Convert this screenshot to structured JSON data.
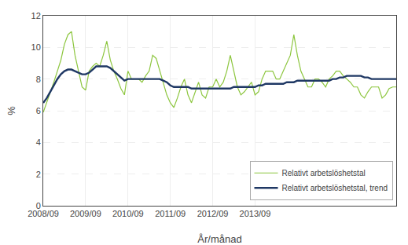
{
  "chart_data": {
    "type": "line",
    "xlabel": "År/månad",
    "ylabel": "%",
    "categories": [
      "2008/09",
      null,
      null,
      null,
      null,
      null,
      null,
      null,
      null,
      null,
      null,
      null,
      "2009/09",
      null,
      null,
      null,
      null,
      null,
      null,
      null,
      null,
      null,
      null,
      null,
      "2010/09",
      null,
      null,
      null,
      null,
      null,
      null,
      null,
      null,
      null,
      null,
      null,
      "2011/09",
      null,
      null,
      null,
      null,
      null,
      null,
      null,
      null,
      null,
      null,
      null,
      "2012/09",
      null,
      null,
      null,
      null,
      null,
      null,
      null,
      null,
      null,
      null,
      null,
      "2013/09",
      null,
      null,
      null,
      null,
      null,
      null,
      null,
      null,
      null,
      null,
      null,
      null,
      null,
      null,
      null,
      null,
      null,
      null,
      null,
      null,
      null,
      null,
      null,
      null,
      null,
      null,
      null,
      null,
      null,
      null,
      null,
      null,
      null,
      null,
      null,
      null,
      null,
      null,
      null,
      null
    ],
    "series": [
      {
        "name": "Relativt arbetslöshetstal",
        "color": "#8dc63f",
        "values": [
          5.9,
          6.5,
          7.2,
          7.8,
          8.5,
          9.2,
          10.2,
          10.8,
          11.0,
          9.5,
          8.5,
          7.5,
          7.3,
          8.5,
          8.8,
          9.0,
          8.8,
          9.5,
          10.4,
          9.2,
          8.5,
          8.0,
          7.4,
          7.0,
          8.5,
          8.0,
          8.0,
          8.0,
          7.8,
          8.2,
          8.5,
          9.5,
          9.3,
          8.5,
          7.8,
          7.0,
          6.5,
          6.2,
          6.8,
          7.5,
          8.0,
          7.0,
          6.5,
          7.2,
          7.8,
          7.0,
          6.8,
          7.5,
          7.5,
          8.0,
          7.5,
          7.8,
          8.5,
          9.5,
          8.5,
          7.5,
          7.0,
          7.2,
          7.5,
          7.8,
          7.0,
          7.2,
          8.0,
          8.5,
          8.5,
          8.5,
          8.0,
          8.0,
          8.5,
          9.0,
          9.5,
          10.8,
          9.5,
          8.5,
          8.0,
          7.5,
          7.5,
          8.0,
          8.0,
          7.8,
          7.5,
          8.0,
          8.2,
          8.5,
          8.5,
          8.2,
          8.0,
          7.8,
          7.5,
          7.5,
          7.0,
          6.8,
          7.2,
          7.5,
          7.5,
          7.5,
          6.8,
          7.0,
          7.4,
          7.5,
          7.5
        ]
      },
      {
        "name": "Relativt arbetslöshetstal, trend",
        "color": "#1f3864",
        "values": [
          6.5,
          6.8,
          7.2,
          7.6,
          8.0,
          8.3,
          8.5,
          8.6,
          8.6,
          8.5,
          8.4,
          8.3,
          8.3,
          8.4,
          8.6,
          8.8,
          8.8,
          8.8,
          8.8,
          8.7,
          8.5,
          8.3,
          8.1,
          7.9,
          8.0,
          8.0,
          8.0,
          8.0,
          8.0,
          8.0,
          8.0,
          8.0,
          8.0,
          8.0,
          7.9,
          7.8,
          7.6,
          7.5,
          7.5,
          7.5,
          7.5,
          7.5,
          7.4,
          7.4,
          7.4,
          7.4,
          7.4,
          7.4,
          7.4,
          7.4,
          7.4,
          7.4,
          7.4,
          7.4,
          7.5,
          7.5,
          7.5,
          7.5,
          7.5,
          7.5,
          7.5,
          7.6,
          7.6,
          7.7,
          7.7,
          7.7,
          7.7,
          7.7,
          7.7,
          7.8,
          7.8,
          7.8,
          7.9,
          7.9,
          7.9,
          7.9,
          7.9,
          7.9,
          7.9,
          7.9,
          7.9,
          7.9,
          8.0,
          8.0,
          8.1,
          8.1,
          8.2,
          8.2,
          8.2,
          8.2,
          8.2,
          8.1,
          8.1,
          8.0,
          8.0,
          8.0,
          8.0,
          8.0,
          8.0,
          8.0,
          8.0
        ]
      }
    ],
    "ylim": [
      0,
      12
    ],
    "yticks": [
      0,
      2,
      4,
      6,
      8,
      10,
      12
    ],
    "grid": true,
    "legend": "lower right"
  }
}
